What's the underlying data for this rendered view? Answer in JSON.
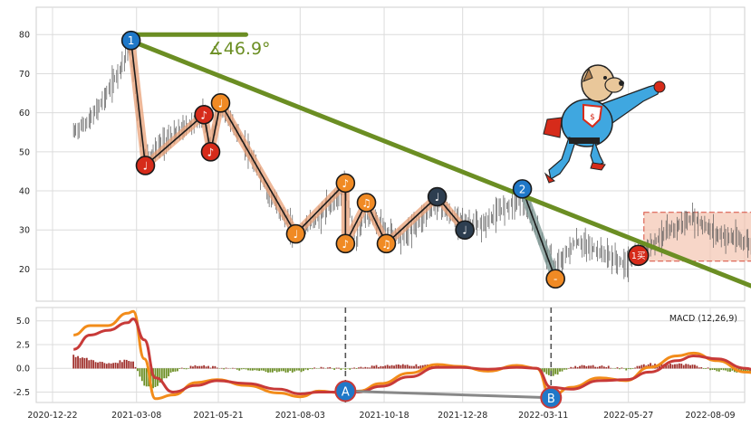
{
  "chart_data": [
    {
      "type": "candlestick-with-annotations",
      "panel": "price",
      "ylim": [
        12,
        87
      ],
      "yticks": [
        20,
        30,
        40,
        50,
        60,
        70,
        80
      ],
      "x_start": "2020-12-22",
      "x_end": "2022-09-30",
      "xticks": [
        "2020-12-22",
        "2021-03-08",
        "2021-05-21",
        "2021-08-03",
        "2021-10-18",
        "2021-12-28",
        "2022-03-11",
        "2022-05-27",
        "2022-08-09"
      ],
      "price_path": [
        [
          "2021-01-10",
          55
        ],
        [
          "2021-01-25",
          58
        ],
        [
          "2021-02-10",
          65
        ],
        [
          "2021-02-28",
          75
        ],
        [
          "2021-03-02",
          78
        ],
        [
          "2021-03-15",
          48
        ],
        [
          "2021-04-01",
          52
        ],
        [
          "2021-04-20",
          56
        ],
        [
          "2021-05-08",
          59
        ],
        [
          "2021-05-14",
          51
        ],
        [
          "2021-05-23",
          62
        ],
        [
          "2021-06-10",
          54
        ],
        [
          "2021-07-05",
          40
        ],
        [
          "2021-07-30",
          29
        ],
        [
          "2021-08-20",
          33
        ],
        [
          "2021-09-13",
          41
        ],
        [
          "2021-09-23",
          27
        ],
        [
          "2021-10-02",
          35
        ],
        [
          "2021-10-20",
          30
        ],
        [
          "2021-11-05",
          28
        ],
        [
          "2021-12-05",
          37
        ],
        [
          "2021-12-20",
          33
        ],
        [
          "2022-01-15",
          31
        ],
        [
          "2022-02-05",
          36
        ],
        [
          "2022-02-20",
          38
        ],
        [
          "2022-03-05",
          30
        ],
        [
          "2022-03-22",
          20
        ],
        [
          "2022-04-10",
          27
        ],
        [
          "2022-05-05",
          24
        ],
        [
          "2022-05-25",
          21
        ],
        [
          "2022-06-10",
          25
        ],
        [
          "2022-07-05",
          30
        ],
        [
          "2022-07-25",
          33
        ],
        [
          "2022-08-15",
          29
        ],
        [
          "2022-09-10",
          27
        ],
        [
          "2022-09-25",
          25
        ]
      ],
      "wave_points": [
        {
          "date": "2021-03-03",
          "value": 78.5,
          "label": "1",
          "style": "blue"
        },
        {
          "date": "2021-03-16",
          "value": 46.5,
          "label": "♩",
          "style": "red"
        },
        {
          "date": "2021-05-08",
          "value": 59.5,
          "label": "♪",
          "style": "red"
        },
        {
          "date": "2021-05-14",
          "value": 50,
          "label": "♪",
          "style": "red"
        },
        {
          "date": "2021-05-23",
          "value": 62.5,
          "label": "♩",
          "style": "orange"
        },
        {
          "date": "2021-07-30",
          "value": 29,
          "label": "♩",
          "style": "orange"
        },
        {
          "date": "2021-09-13",
          "value": 42,
          "label": "♪",
          "style": "orange"
        },
        {
          "date": "2021-09-13",
          "value": 26.5,
          "label": "♪",
          "style": "orange"
        },
        {
          "date": "2021-10-02",
          "value": 37,
          "label": "♫",
          "style": "orange"
        },
        {
          "date": "2021-10-20",
          "value": 26.5,
          "label": "♫",
          "style": "orange"
        },
        {
          "date": "2021-12-05",
          "value": 38.5,
          "label": "♩",
          "style": "navy"
        },
        {
          "date": "2021-12-30",
          "value": 30,
          "label": "♩",
          "style": "navy"
        },
        {
          "date": "2022-02-20",
          "value": 40.5,
          "label": "2",
          "style": "blue"
        },
        {
          "date": "2022-03-22",
          "value": 17.5,
          "label": "-",
          "style": "orange"
        }
      ],
      "trendlines": [
        {
          "from": [
            "2021-03-02",
            78.5
          ],
          "to": [
            "2022-09-30",
            14
          ],
          "color": "#6b8e23"
        },
        {
          "from": [
            "2021-03-02",
            80
          ],
          "to": [
            "2021-06-15",
            80
          ],
          "color": "#6b8e23"
        }
      ],
      "angle_label": "∡46.9°",
      "buy_marker": {
        "date": "2022-06-05",
        "value": 23.5,
        "label": "1买"
      },
      "highlight_box": {
        "from": "2022-06-10",
        "to": "2022-09-30",
        "low": 22,
        "high": 34.5
      }
    },
    {
      "type": "macd",
      "panel": "indicator",
      "title": "MACD (12,26,9)",
      "ylim": [
        -3.6,
        6.4
      ],
      "yticks": [
        -2.5,
        0.0,
        2.5,
        5.0
      ],
      "ytick_labels": [
        "-2.5",
        "0.0",
        "2.5",
        "5.0"
      ],
      "dif": [
        [
          "2021-01-10",
          3.5
        ],
        [
          "2021-01-25",
          4.5
        ],
        [
          "2021-02-10",
          4.5
        ],
        [
          "2021-02-28",
          5.8
        ],
        [
          "2021-03-05",
          6.0
        ],
        [
          "2021-03-15",
          1.0
        ],
        [
          "2021-03-25",
          -3.2
        ],
        [
          "2021-04-10",
          -2.8
        ],
        [
          "2021-05-01",
          -1.5
        ],
        [
          "2021-05-20",
          -1.2
        ],
        [
          "2021-06-15",
          -1.8
        ],
        [
          "2021-07-15",
          -2.6
        ],
        [
          "2021-08-03",
          -3.0
        ],
        [
          "2021-08-20",
          -2.4
        ],
        [
          "2021-09-10",
          -2.6
        ],
        [
          "2021-09-25",
          -2.4
        ],
        [
          "2021-10-15",
          -1.6
        ],
        [
          "2021-11-10",
          -0.5
        ],
        [
          "2021-12-05",
          0.4
        ],
        [
          "2021-12-25",
          0.2
        ],
        [
          "2022-01-20",
          -0.3
        ],
        [
          "2022-02-15",
          0.3
        ],
        [
          "2022-03-05",
          0.0
        ],
        [
          "2022-03-18",
          -3.0
        ],
        [
          "2022-04-05",
          -2.0
        ],
        [
          "2022-05-01",
          -1.0
        ],
        [
          "2022-05-25",
          -1.3
        ],
        [
          "2022-06-15",
          0.1
        ],
        [
          "2022-07-10",
          1.3
        ],
        [
          "2022-07-25",
          1.6
        ],
        [
          "2022-08-15",
          0.8
        ],
        [
          "2022-09-10",
          -0.4
        ],
        [
          "2022-09-25",
          -0.6
        ]
      ],
      "dea": [
        [
          "2021-01-10",
          2.0
        ],
        [
          "2021-01-25",
          3.5
        ],
        [
          "2021-02-10",
          4.0
        ],
        [
          "2021-02-28",
          4.8
        ],
        [
          "2021-03-05",
          5.2
        ],
        [
          "2021-03-15",
          3.0
        ],
        [
          "2021-03-25",
          -1.0
        ],
        [
          "2021-04-10",
          -2.5
        ],
        [
          "2021-05-01",
          -1.8
        ],
        [
          "2021-05-20",
          -1.3
        ],
        [
          "2021-06-15",
          -1.6
        ],
        [
          "2021-07-15",
          -2.2
        ],
        [
          "2021-08-03",
          -2.7
        ],
        [
          "2021-08-20",
          -2.5
        ],
        [
          "2021-09-10",
          -2.5
        ],
        [
          "2021-09-25",
          -2.5
        ],
        [
          "2021-10-15",
          -1.9
        ],
        [
          "2021-11-10",
          -0.9
        ],
        [
          "2021-12-05",
          0.1
        ],
        [
          "2021-12-25",
          0.1
        ],
        [
          "2022-01-20",
          -0.1
        ],
        [
          "2022-02-15",
          0.1
        ],
        [
          "2022-03-05",
          0.0
        ],
        [
          "2022-03-18",
          -2.0
        ],
        [
          "2022-04-05",
          -2.2
        ],
        [
          "2022-05-01",
          -1.3
        ],
        [
          "2022-05-25",
          -1.2
        ],
        [
          "2022-06-15",
          -0.4
        ],
        [
          "2022-07-10",
          0.8
        ],
        [
          "2022-07-25",
          1.3
        ],
        [
          "2022-08-15",
          1.0
        ],
        [
          "2022-09-10",
          0.0
        ],
        [
          "2022-09-25",
          -0.5
        ]
      ],
      "divergence": [
        {
          "date": "2021-09-13",
          "value": -2.4,
          "label": "A"
        },
        {
          "date": "2022-03-18",
          "value": -3.1,
          "label": "B"
        }
      ],
      "vlines": [
        "2021-09-13",
        "2022-03-18"
      ]
    }
  ],
  "colors": {
    "trend": "#6b8e23",
    "dif": "#f28c1a",
    "dea": "#c83a38",
    "hist_pos": "#a0302c",
    "hist_neg": "#6b8e23",
    "wave_fill": "#e8a077",
    "box_fill": "#f4c4b0",
    "marker_blue": "#1f78c8",
    "marker_red": "#d62b1a",
    "marker_orange": "#f08a24",
    "marker_navy": "#2d3e50"
  },
  "mascot": "superhero-dog-icon"
}
